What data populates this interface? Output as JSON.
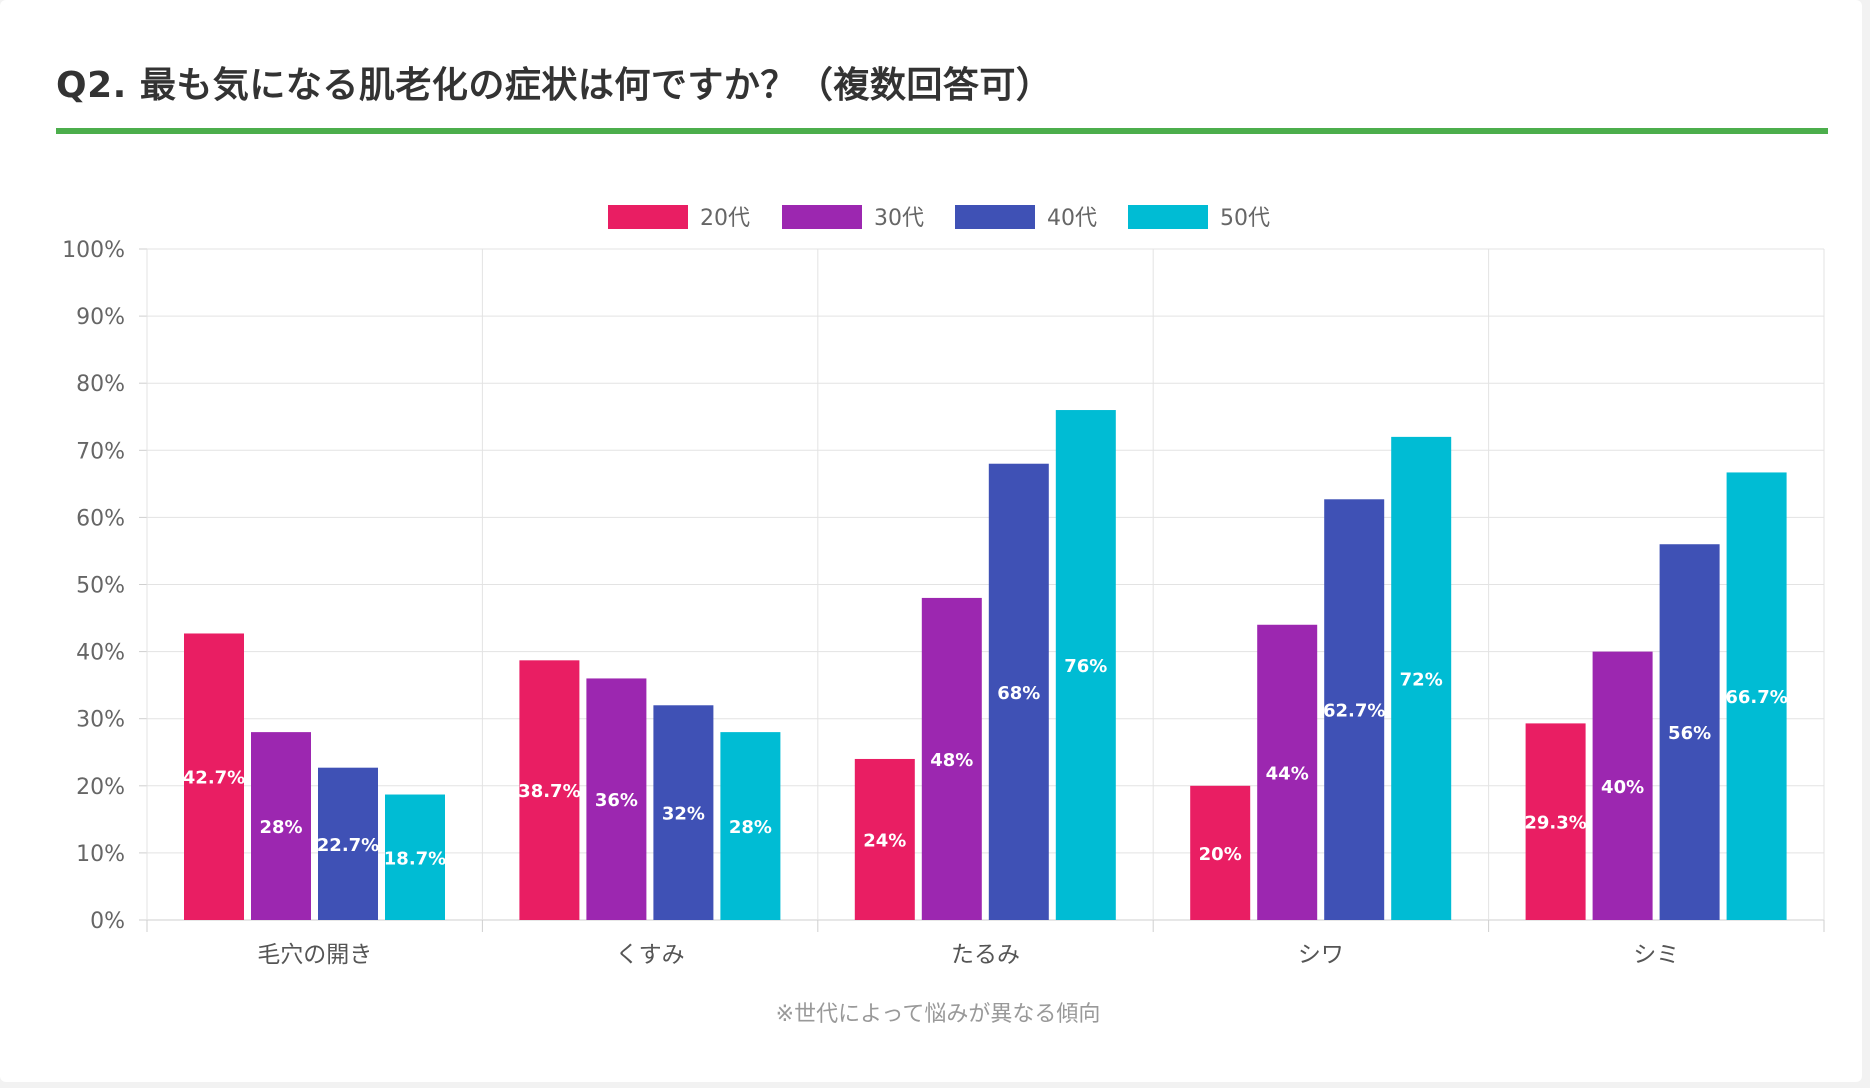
{
  "title": "Q2. 最も気になる肌老化の症状は何ですか？（複数回答可）",
  "accent_color": "#4cae4c",
  "chart_data": {
    "type": "bar",
    "title": "Q2. 最も気になる肌老化の症状は何ですか？（複数回答可）",
    "categories": [
      "毛穴の開き",
      "くすみ",
      "たるみ",
      "シワ",
      "シミ"
    ],
    "series": [
      {
        "name": "20代",
        "color": "#e91e63",
        "values": [
          42.7,
          38.7,
          24,
          20,
          29.3
        ]
      },
      {
        "name": "30代",
        "color": "#9c27b0",
        "values": [
          28,
          36,
          48,
          44,
          40
        ]
      },
      {
        "name": "40代",
        "color": "#3f51b5",
        "values": [
          22.7,
          32,
          68,
          62.7,
          56
        ]
      },
      {
        "name": "50代",
        "color": "#00bcd4",
        "values": [
          18.7,
          28,
          76,
          72,
          66.7
        ]
      }
    ],
    "data_labels": [
      [
        "42.7%",
        "38.7%",
        "24%",
        "20%",
        "29.3%"
      ],
      [
        "28%",
        "36%",
        "48%",
        "44%",
        "40%"
      ],
      [
        "22.7%",
        "32%",
        "68%",
        "62.7%",
        "56%"
      ],
      [
        "18.7%",
        "28%",
        "76%",
        "72%",
        "66.7%"
      ]
    ],
    "y_ticks": [
      "0%",
      "10%",
      "20%",
      "30%",
      "40%",
      "50%",
      "60%",
      "70%",
      "80%",
      "90%",
      "100%"
    ],
    "ylim": [
      0,
      100
    ],
    "xlabel": "",
    "ylabel": "",
    "grid": true,
    "legend_position": "top-center",
    "annotation": "※世代によって悩みが異なる傾向"
  }
}
